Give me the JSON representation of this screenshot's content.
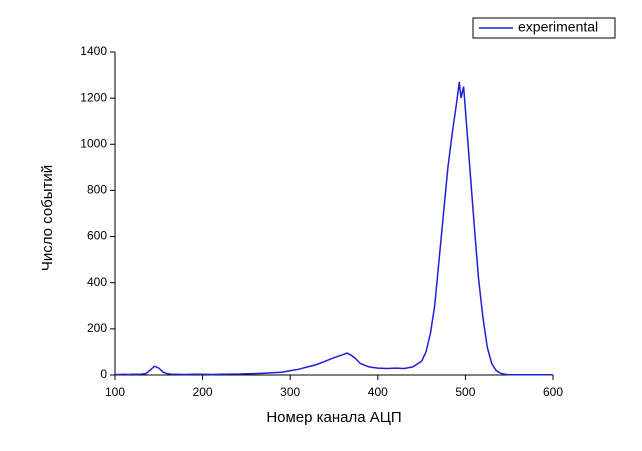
{
  "chart_data": {
    "type": "line",
    "x_label": "Номер канала АЦП",
    "y_label": "Число событий",
    "xlim": [
      100,
      600
    ],
    "xticks": [
      100,
      200,
      300,
      400,
      500,
      600
    ],
    "ylim": [
      0,
      1400
    ],
    "yticks": [
      0,
      200,
      400,
      600,
      800,
      1000,
      1200,
      1400
    ],
    "legend": "top-right",
    "x": [
      100,
      105,
      110,
      115,
      120,
      125,
      130,
      135,
      140,
      145,
      150,
      155,
      160,
      165,
      170,
      180,
      190,
      200,
      210,
      220,
      230,
      240,
      250,
      260,
      270,
      280,
      290,
      300,
      310,
      320,
      330,
      340,
      350,
      360,
      365,
      370,
      375,
      380,
      390,
      400,
      410,
      420,
      430,
      440,
      450,
      455,
      460,
      465,
      470,
      475,
      480,
      485,
      490,
      493,
      495,
      498,
      500,
      505,
      510,
      515,
      520,
      525,
      530,
      535,
      540,
      545,
      550,
      560,
      570,
      580,
      590,
      600
    ],
    "series": [
      {
        "name": "experimental",
        "color": "#1f1fd6",
        "values": [
          2,
          2,
          3,
          2,
          3,
          3,
          4,
          6,
          20,
          38,
          30,
          12,
          5,
          3,
          3,
          2,
          3,
          3,
          2,
          3,
          4,
          4,
          5,
          6,
          8,
          10,
          12,
          18,
          25,
          35,
          45,
          60,
          75,
          88,
          95,
          85,
          70,
          50,
          35,
          30,
          28,
          30,
          28,
          35,
          60,
          100,
          180,
          300,
          500,
          700,
          900,
          1050,
          1180,
          1270,
          1200,
          1250,
          1150,
          900,
          650,
          420,
          250,
          120,
          50,
          20,
          8,
          3,
          1,
          1,
          1,
          1,
          1,
          1
        ]
      }
    ]
  }
}
